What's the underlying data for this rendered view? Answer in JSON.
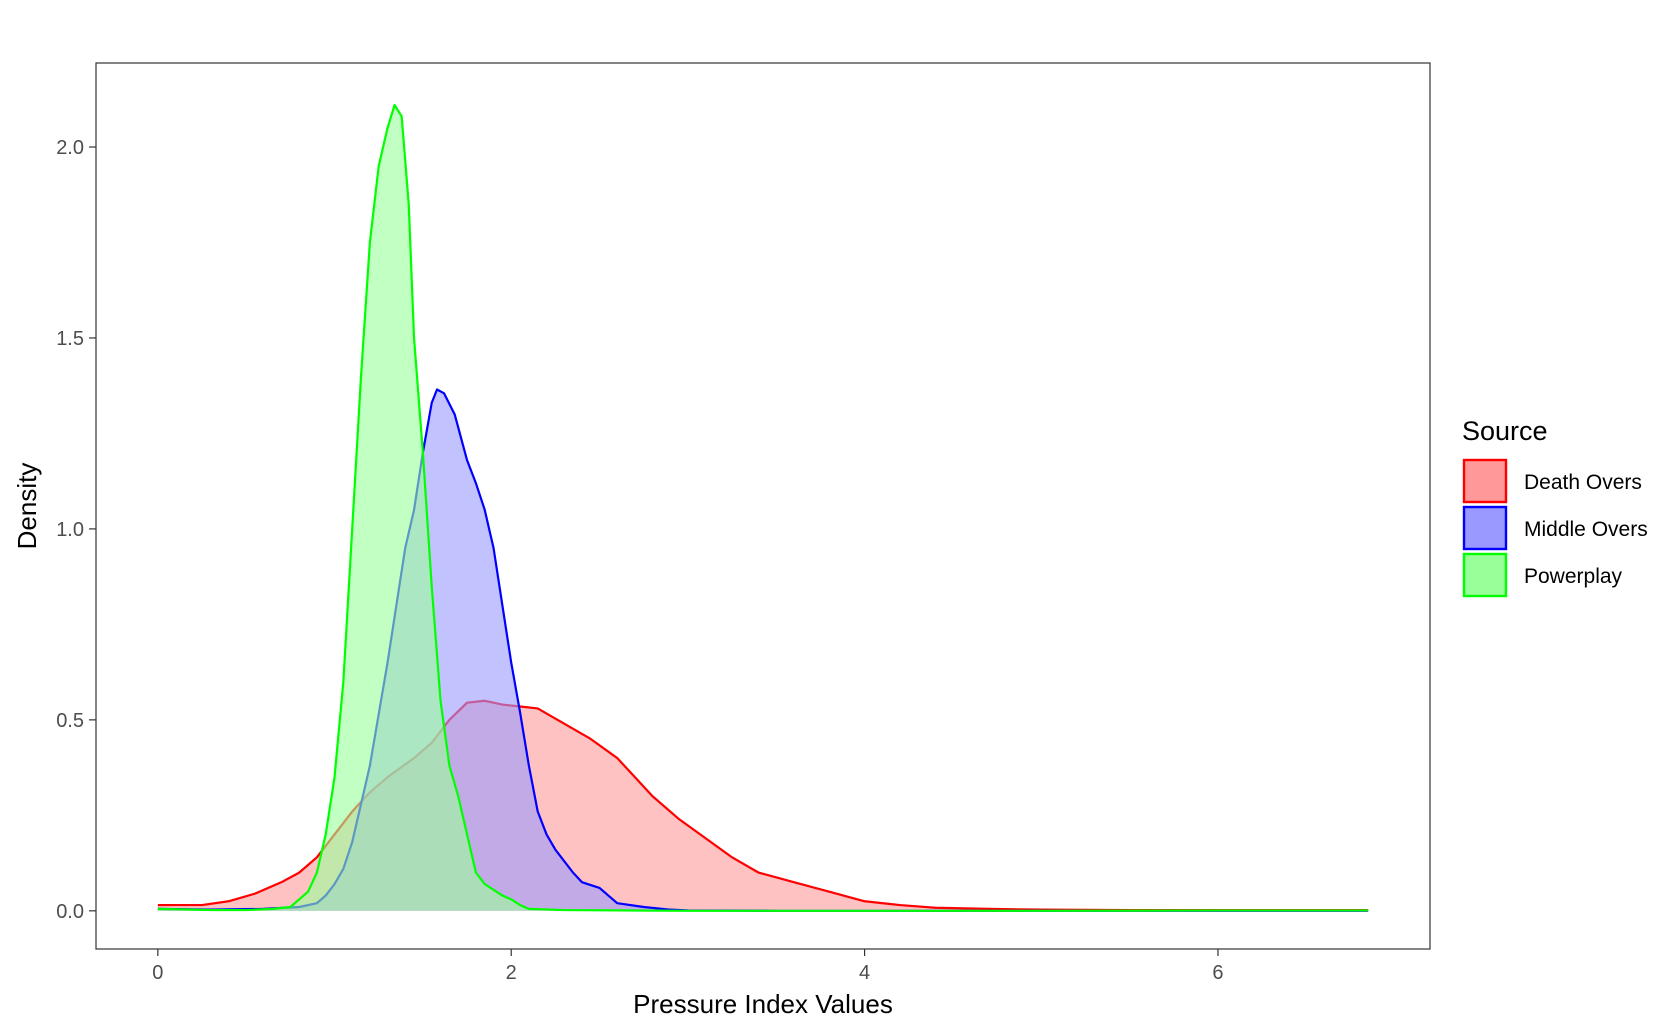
{
  "chart_data": {
    "type": "area",
    "title": "",
    "xlabel": "Pressure Index Values",
    "ylabel": "Density",
    "xlim": [
      -0.35,
      7.2
    ],
    "ylim": [
      -0.1,
      2.22
    ],
    "x_ticks": [
      0,
      2,
      4,
      6
    ],
    "x_tick_labels": [
      "0",
      "2",
      "4",
      "6"
    ],
    "y_ticks": [
      0.0,
      0.5,
      1.0,
      1.5,
      2.0
    ],
    "y_tick_labels": [
      "0.0",
      "0.5",
      "1.0",
      "1.5",
      "2.0"
    ],
    "grid": false,
    "legend": {
      "title": "Source",
      "position": "right"
    },
    "series": [
      {
        "name": "Death Overs",
        "color": "#ff0000",
        "fill": "#ff9999",
        "points": [
          [
            0,
            0.015
          ],
          [
            0.1,
            0.015
          ],
          [
            0.25,
            0.015
          ],
          [
            0.4,
            0.025
          ],
          [
            0.55,
            0.045
          ],
          [
            0.7,
            0.075
          ],
          [
            0.8,
            0.1
          ],
          [
            0.9,
            0.14
          ],
          [
            1.0,
            0.2
          ],
          [
            1.1,
            0.26
          ],
          [
            1.2,
            0.31
          ],
          [
            1.3,
            0.35
          ],
          [
            1.45,
            0.4
          ],
          [
            1.55,
            0.44
          ],
          [
            1.65,
            0.5
          ],
          [
            1.75,
            0.545
          ],
          [
            1.85,
            0.55
          ],
          [
            1.95,
            0.54
          ],
          [
            2.05,
            0.535
          ],
          [
            2.15,
            0.53
          ],
          [
            2.3,
            0.49
          ],
          [
            2.45,
            0.45
          ],
          [
            2.6,
            0.4
          ],
          [
            2.7,
            0.35
          ],
          [
            2.8,
            0.3
          ],
          [
            2.95,
            0.24
          ],
          [
            3.1,
            0.19
          ],
          [
            3.25,
            0.14
          ],
          [
            3.4,
            0.1
          ],
          [
            3.6,
            0.075
          ],
          [
            3.8,
            0.05
          ],
          [
            4.0,
            0.025
          ],
          [
            4.2,
            0.015
          ],
          [
            4.4,
            0.008
          ],
          [
            4.7,
            0.005
          ],
          [
            5.0,
            0.003
          ],
          [
            5.5,
            0.002
          ],
          [
            6.0,
            0.002
          ],
          [
            6.5,
            0.002
          ],
          [
            6.85,
            0.002
          ]
        ]
      },
      {
        "name": "Middle Overs",
        "color": "#0000ff",
        "fill": "#9999ff",
        "points": [
          [
            0,
            0.005
          ],
          [
            0.3,
            0.003
          ],
          [
            0.6,
            0.005
          ],
          [
            0.8,
            0.01
          ],
          [
            0.9,
            0.02
          ],
          [
            0.95,
            0.04
          ],
          [
            1.0,
            0.07
          ],
          [
            1.05,
            0.11
          ],
          [
            1.1,
            0.18
          ],
          [
            1.2,
            0.38
          ],
          [
            1.3,
            0.65
          ],
          [
            1.35,
            0.8
          ],
          [
            1.4,
            0.95
          ],
          [
            1.45,
            1.05
          ],
          [
            1.5,
            1.2
          ],
          [
            1.55,
            1.33
          ],
          [
            1.58,
            1.365
          ],
          [
            1.62,
            1.355
          ],
          [
            1.68,
            1.3
          ],
          [
            1.75,
            1.18
          ],
          [
            1.8,
            1.12
          ],
          [
            1.85,
            1.05
          ],
          [
            1.9,
            0.95
          ],
          [
            1.95,
            0.8
          ],
          [
            2.0,
            0.65
          ],
          [
            2.05,
            0.52
          ],
          [
            2.1,
            0.38
          ],
          [
            2.15,
            0.26
          ],
          [
            2.2,
            0.2
          ],
          [
            2.25,
            0.16
          ],
          [
            2.3,
            0.13
          ],
          [
            2.35,
            0.1
          ],
          [
            2.4,
            0.075
          ],
          [
            2.5,
            0.06
          ],
          [
            2.55,
            0.04
          ],
          [
            2.6,
            0.02
          ],
          [
            2.75,
            0.01
          ],
          [
            2.9,
            0.003
          ],
          [
            3.0,
            0.001
          ],
          [
            3.5,
            0.0
          ],
          [
            4.5,
            0.0
          ],
          [
            5.5,
            0.0
          ],
          [
            6.85,
            0.0
          ]
        ]
      },
      {
        "name": "Powerplay",
        "color": "#00ff00",
        "fill": "#99ff99",
        "points": [
          [
            0,
            0.005
          ],
          [
            0.3,
            0.002
          ],
          [
            0.5,
            0.002
          ],
          [
            0.65,
            0.005
          ],
          [
            0.75,
            0.01
          ],
          [
            0.85,
            0.05
          ],
          [
            0.9,
            0.1
          ],
          [
            0.95,
            0.2
          ],
          [
            1.0,
            0.35
          ],
          [
            1.05,
            0.6
          ],
          [
            1.1,
            1.0
          ],
          [
            1.15,
            1.4
          ],
          [
            1.2,
            1.75
          ],
          [
            1.25,
            1.95
          ],
          [
            1.3,
            2.05
          ],
          [
            1.34,
            2.11
          ],
          [
            1.38,
            2.08
          ],
          [
            1.42,
            1.85
          ],
          [
            1.45,
            1.5
          ],
          [
            1.5,
            1.2
          ],
          [
            1.55,
            0.85
          ],
          [
            1.6,
            0.55
          ],
          [
            1.65,
            0.38
          ],
          [
            1.7,
            0.3
          ],
          [
            1.75,
            0.2
          ],
          [
            1.8,
            0.1
          ],
          [
            1.85,
            0.07
          ],
          [
            1.9,
            0.055
          ],
          [
            1.95,
            0.04
          ],
          [
            2.0,
            0.03
          ],
          [
            2.05,
            0.015
          ],
          [
            2.1,
            0.005
          ],
          [
            2.3,
            0.002
          ],
          [
            3.0,
            0.0
          ],
          [
            4.0,
            0.0
          ],
          [
            5.0,
            0.0
          ],
          [
            6.0,
            0.001
          ],
          [
            6.85,
            0.001
          ]
        ]
      }
    ]
  }
}
